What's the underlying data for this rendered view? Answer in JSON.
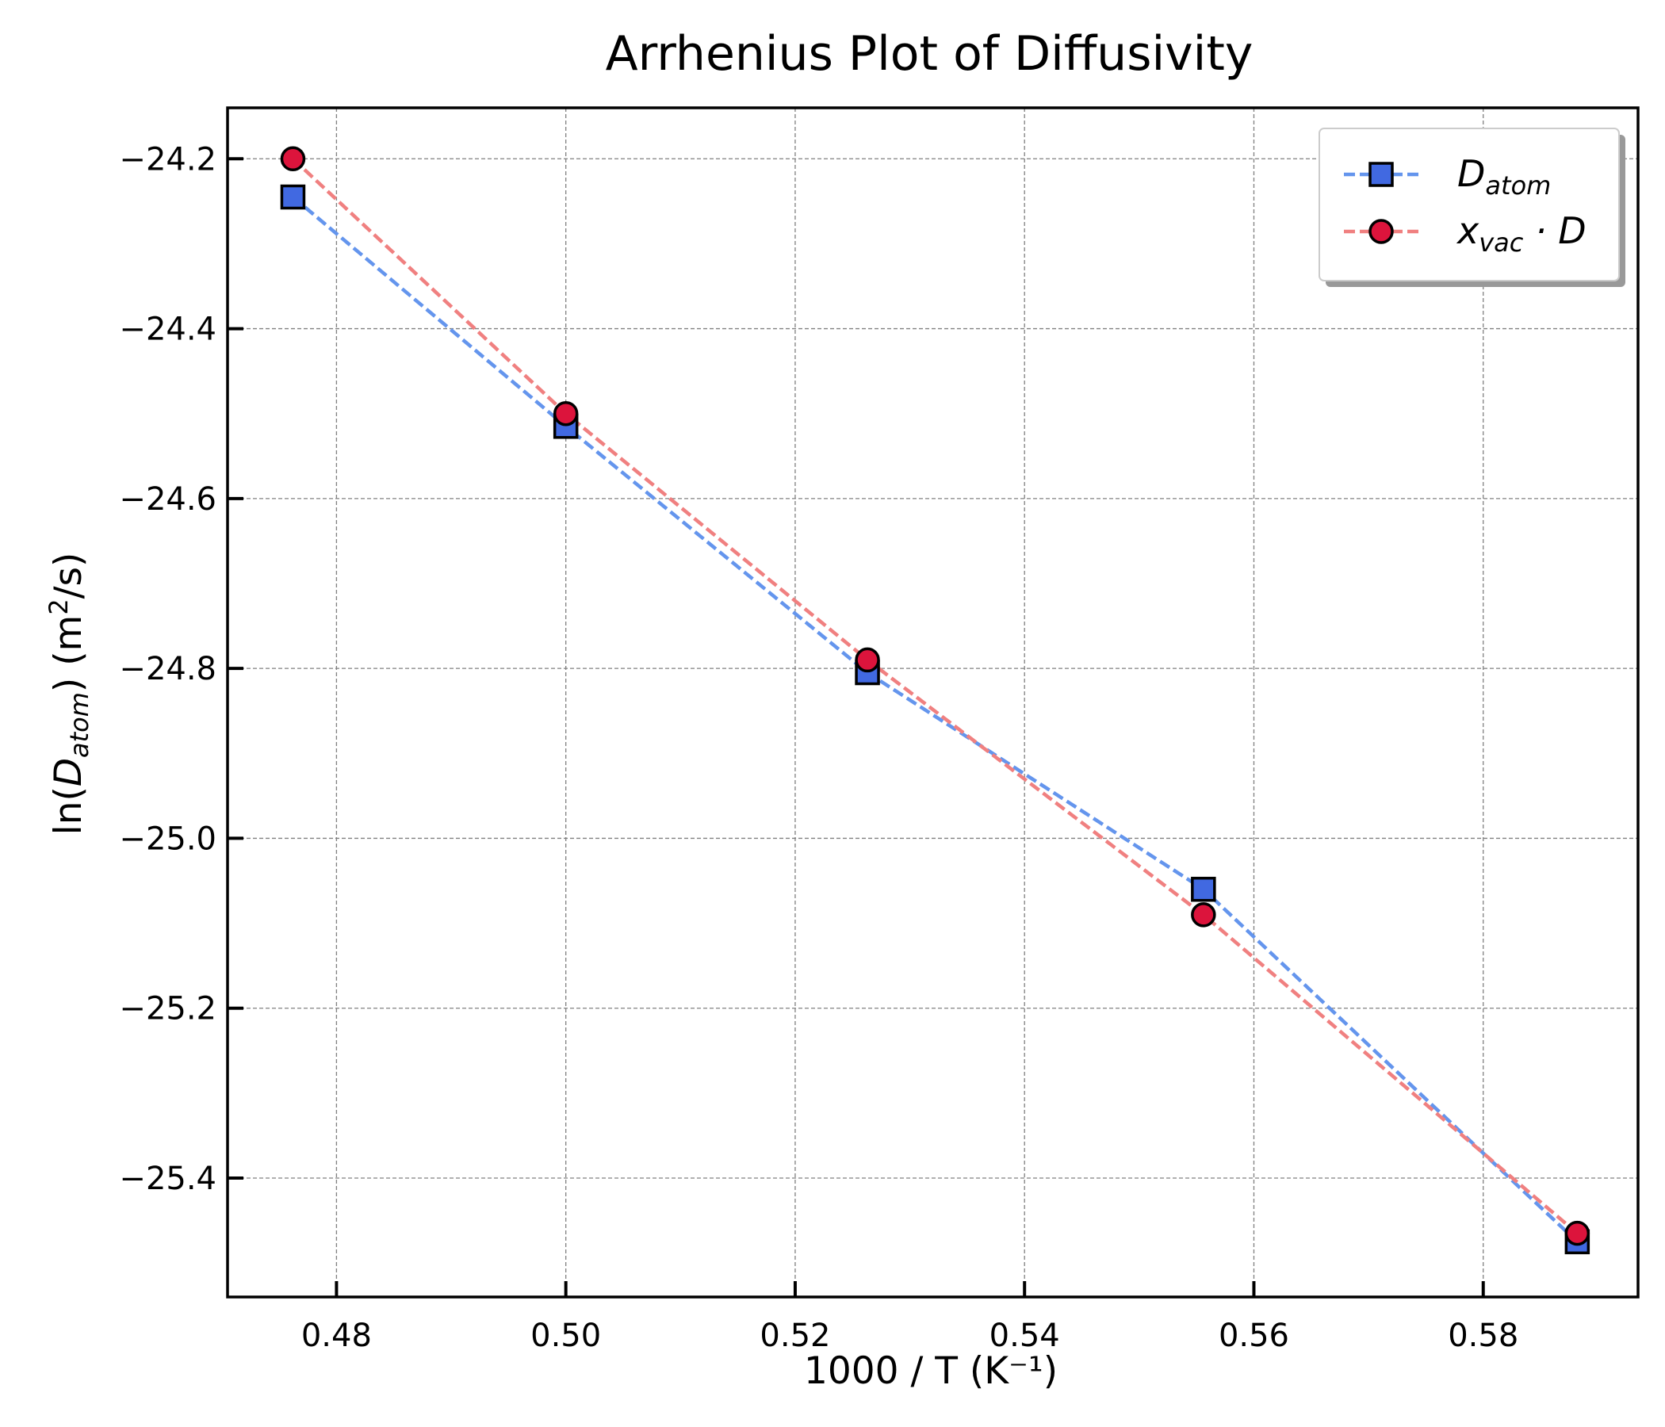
{
  "chart_data": {
    "type": "line",
    "title": "Arrhenius Plot of Diffusivity",
    "xlabel": "1000 / T (K⁻¹)",
    "ylabel": {
      "prefix": "ln(",
      "main": "D",
      "sub": "atom",
      "suffix": ") (m",
      "sup": "2",
      "end": "/s)"
    },
    "xlim": [
      0.4705,
      0.5935
    ],
    "ylim": [
      -25.54,
      -24.14
    ],
    "x_ticks": [
      0.48,
      0.5,
      0.52,
      0.54,
      0.56,
      0.58
    ],
    "x_tick_labels": [
      "0.48",
      "0.50",
      "0.52",
      "0.54",
      "0.56",
      "0.58"
    ],
    "y_ticks": [
      -24.2,
      -24.4,
      -24.6,
      -24.8,
      -25.0,
      -25.2,
      -25.4
    ],
    "y_tick_labels": [
      "−24.2",
      "−24.4",
      "−24.6",
      "−24.8",
      "−25.0",
      "−25.2",
      "−25.4"
    ],
    "grid": true,
    "legend_position": "top-right",
    "series": [
      {
        "name": "D_atom",
        "legend": {
          "main": "D",
          "sub": "atom",
          "after": ""
        },
        "marker": "square",
        "line_color": "#6495ED",
        "marker_color": "#4169E1",
        "x": [
          0.4762,
          0.5,
          0.5263,
          0.5556,
          0.5882
        ],
        "y": [
          -24.245,
          -24.515,
          -24.805,
          -25.06,
          -25.475
        ]
      },
      {
        "name": "x_vac · D",
        "legend": {
          "main": "x",
          "sub": "vac",
          "after": " · D"
        },
        "marker": "circle",
        "line_color": "#F08080",
        "marker_color": "#DC143C",
        "x": [
          0.4762,
          0.5,
          0.5263,
          0.5556,
          0.5882
        ],
        "y": [
          -24.2,
          -24.5,
          -24.79,
          -25.09,
          -25.465
        ]
      }
    ]
  }
}
